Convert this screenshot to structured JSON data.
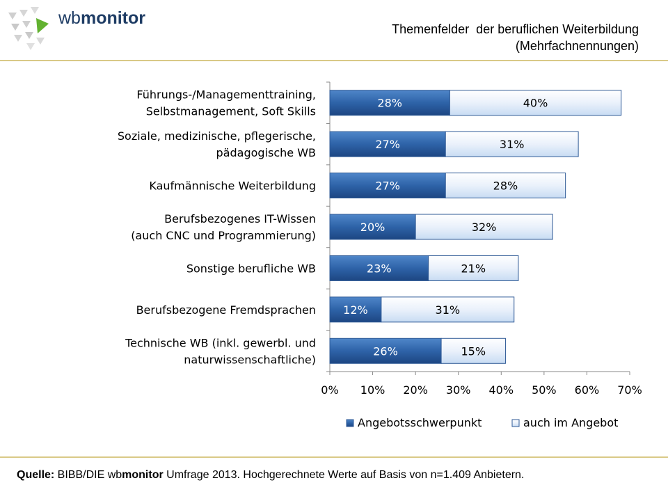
{
  "logo": {
    "brand_light": "wb",
    "brand_bold": "monitor"
  },
  "header": {
    "title_line1": "Themenfelder  der beruflichen Weiterbildung",
    "title_line2": "(Mehrfachnennungen)"
  },
  "footer": {
    "source_label": "Quelle:",
    "source_text": " BIBB/DIE wb",
    "source_brand": "monitor",
    "source_rest": " Umfrage 2013. Hochgerechnete Werte auf Basis von n=1.409 Anbietern."
  },
  "colors": {
    "dark_series": "#2e63a8",
    "light_series": "#eaf1fb",
    "bar_border": "#2f5a96",
    "rule": "#d9c987",
    "logo_green": "#62b230",
    "logo_gray": "#c9c9c9"
  },
  "chart_data": {
    "type": "bar",
    "orientation": "horizontal",
    "stacked": true,
    "categories": [
      [
        "Führungs-/Managementtraining,",
        "Selbstmanagement, Soft Skills"
      ],
      [
        "Soziale, medizinische, pflegerische,",
        "pädagogische WB"
      ],
      [
        "Kaufmännische Weiterbildung"
      ],
      [
        "Berufsbezogenes IT-Wissen",
        "(auch CNC und Programmierung)"
      ],
      [
        "Sonstige berufliche WB"
      ],
      [
        "Berufsbezogene Fremdsprachen"
      ],
      [
        "Technische WB (inkl. gewerbl. und",
        "naturwissenschaftliche)"
      ]
    ],
    "series": [
      {
        "name": "Angebotsschwerpunkt",
        "values": [
          28,
          27,
          27,
          20,
          23,
          12,
          26
        ],
        "labels": [
          "28%",
          "27%",
          "27%",
          "20%",
          "23%",
          "12%",
          "26%"
        ]
      },
      {
        "name": "auch im Angebot",
        "values": [
          40,
          31,
          28,
          32,
          21,
          31,
          15
        ],
        "labels": [
          "40%",
          "31%",
          "28%",
          "32%",
          "21%",
          "31%",
          "15%"
        ]
      }
    ],
    "xlim": [
      0,
      70
    ],
    "xticks": [
      0,
      10,
      20,
      30,
      40,
      50,
      60,
      70
    ],
    "xtick_labels": [
      "0%",
      "10%",
      "20%",
      "30%",
      "40%",
      "50%",
      "60%",
      "70%"
    ],
    "legend_position": "bottom-right",
    "grid": false
  }
}
